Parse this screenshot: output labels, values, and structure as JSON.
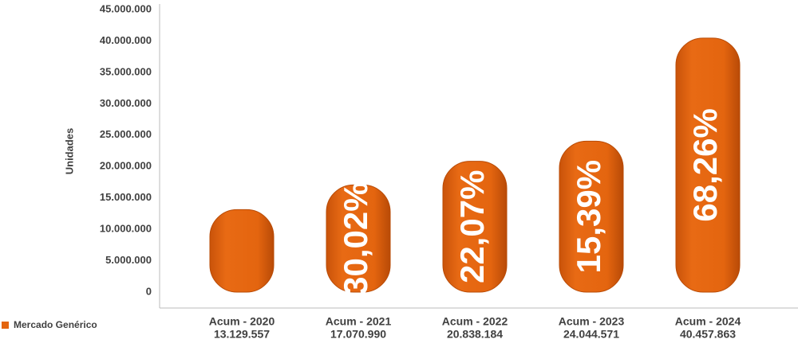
{
  "chart_data": {
    "type": "bar",
    "y_label": "Unidades",
    "categories": [
      "Acum - 2020",
      "Acum - 2021",
      "Acum - 2022",
      "Acum - 2023",
      "Acum - 2024"
    ],
    "series": [
      {
        "name": "Mercado Genérico",
        "color": "#e4650f",
        "values": [
          13129557,
          17070990,
          20838184,
          24044571,
          40457863
        ],
        "value_labels": [
          "13.129.557",
          "17.070.990",
          "20.838.184",
          "24.044.571",
          "40.457.863"
        ]
      }
    ],
    "annotations": [
      null,
      "30,02%",
      "22,07%",
      "15,39%",
      "68,26%"
    ],
    "ylim": [
      0,
      45000000
    ],
    "yticks": [
      0,
      {
        "value": 5000000,
        "label": "5.000.000"
      },
      {
        "value": 10000000,
        "label": "10.000.000"
      },
      {
        "value": 15000000,
        "label": "15.000.000"
      },
      {
        "value": 20000000,
        "label": "20.000.000"
      },
      {
        "value": 25000000,
        "label": "25.000.000"
      },
      {
        "value": 30000000,
        "label": "30.000.000"
      },
      {
        "value": 35000000,
        "label": "35.000.000"
      },
      {
        "value": 40000000,
        "label": "40.000.000"
      },
      {
        "value": 45000000,
        "label": "45.000.000"
      }
    ],
    "legend": "bottom-left"
  }
}
